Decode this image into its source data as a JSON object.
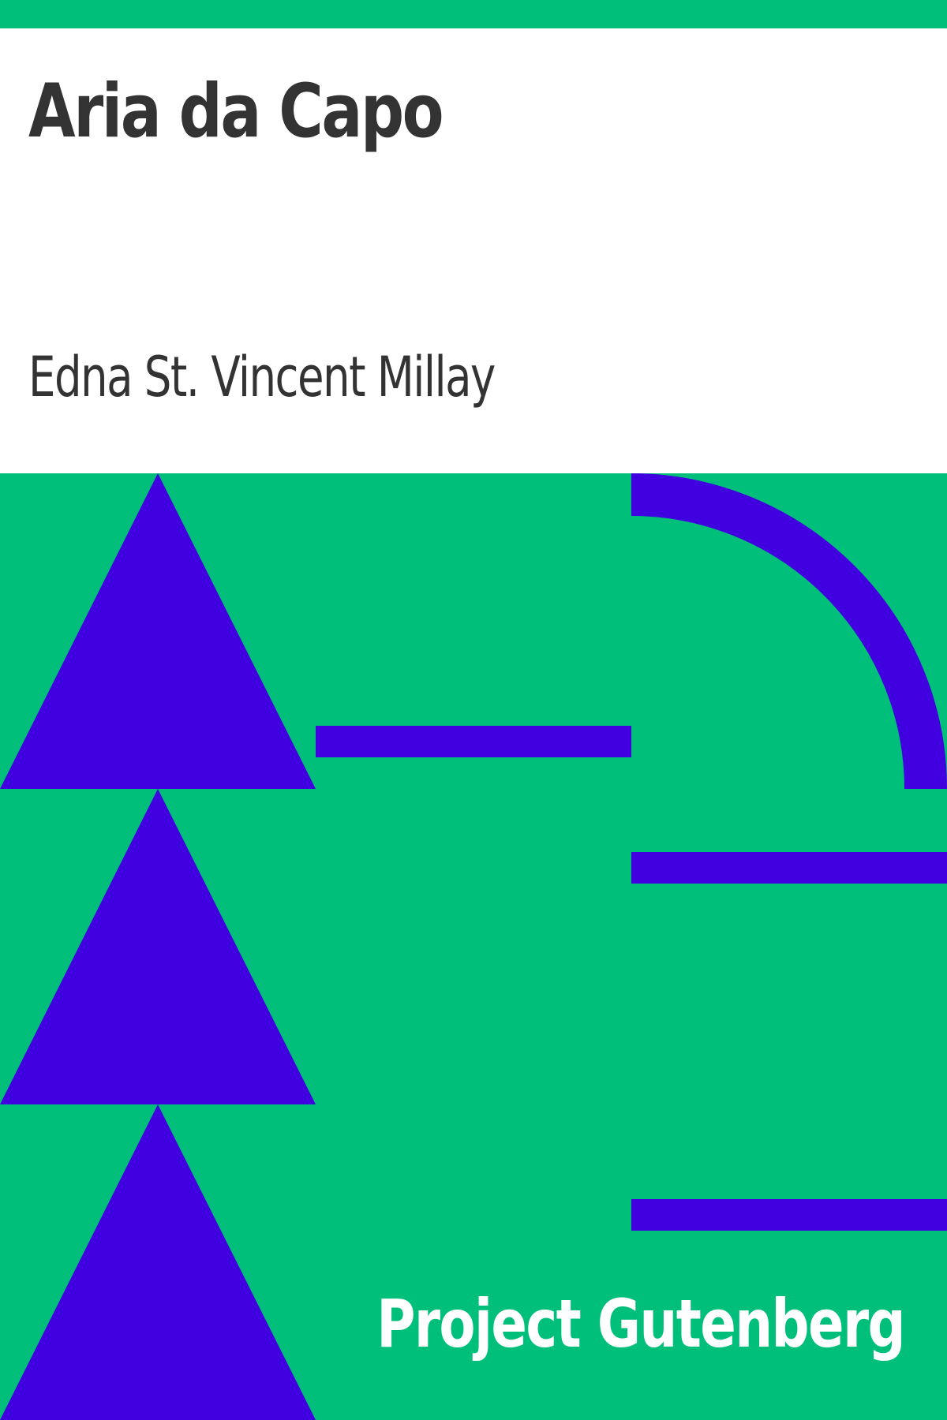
{
  "cover": {
    "title": "Aria da Capo",
    "author": "Edna St. Vincent Millay",
    "publisher": "Project Gutenberg"
  },
  "colors": {
    "background": "#00bf7a",
    "shapes": "#4100e0",
    "text_dark": "#333333",
    "text_light": "#ffffff",
    "panel": "#ffffff"
  },
  "artwork": {
    "shapes": [
      "triangle",
      "triangle",
      "triangle",
      "bar",
      "arc",
      "bar",
      "bar"
    ]
  }
}
